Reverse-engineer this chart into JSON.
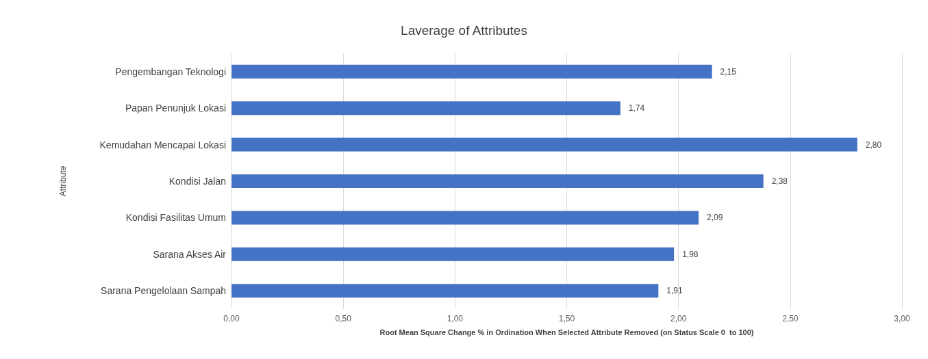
{
  "chart_data": {
    "type": "bar",
    "orientation": "horizontal",
    "title": "Laverage of Attributes",
    "xlabel": "Root Mean Square Change % in Ordination When Selected Attribute Removed (on Status Scale 0  to 100)",
    "ylabel": "Attribute",
    "categories": [
      "Pengembangan Teknologi",
      "Papan Penunjuk Lokasi",
      "Kemudahan Mencapai Lokasi",
      "Kondisi Jalan",
      "Kondisi Fasilitas Umum",
      "Sarana Akses Air",
      "Sarana Pengelolaan Sampah"
    ],
    "values": [
      2.15,
      1.74,
      2.8,
      2.38,
      2.09,
      1.98,
      1.91
    ],
    "value_labels": [
      "2,15",
      "1,74",
      "2,80",
      "2,38",
      "2,09",
      "1,98",
      "1,91"
    ],
    "color": "#4472c4",
    "xlim": [
      0,
      3
    ],
    "xticks": [
      {
        "value": 0,
        "label": "0,00"
      },
      {
        "value": 0.5,
        "label": "0,50"
      },
      {
        "value": 1,
        "label": "1,00"
      },
      {
        "value": 1.5,
        "label": "1,50"
      },
      {
        "value": 2,
        "label": "2,00"
      },
      {
        "value": 2.5,
        "label": "2,50"
      },
      {
        "value": 3,
        "label": "3,00"
      }
    ],
    "grid": "x"
  }
}
